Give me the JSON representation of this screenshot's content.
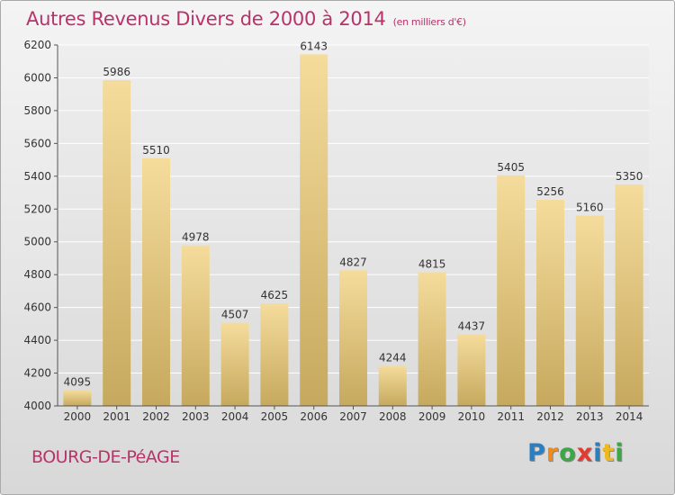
{
  "title": "Autres Revenus Divers de 2000 à 2014",
  "unit_note": "(en milliers d'€)",
  "location": "BOURG-DE-PéAGE",
  "brand": {
    "text": "Proxiti",
    "letter_colors": [
      "#2b7fc1",
      "#f08a1c",
      "#3aa845",
      "#e33b2f",
      "#2b7fc1",
      "#f0b81c",
      "#3aa845"
    ]
  },
  "colors": {
    "title": "#b8336a",
    "bar_light": "#f5dc9c",
    "bar_dark": "#c6a95e",
    "grid": "#ffffff"
  },
  "chart_data": {
    "type": "bar",
    "categories": [
      "2000",
      "2001",
      "2002",
      "2003",
      "2004",
      "2005",
      "2006",
      "2007",
      "2008",
      "2009",
      "2010",
      "2011",
      "2012",
      "2013",
      "2014"
    ],
    "values": [
      4095,
      5986,
      5510,
      4978,
      4507,
      4625,
      6143,
      4827,
      4244,
      4815,
      4437,
      5405,
      5256,
      5160,
      5350
    ],
    "ylim": [
      4000,
      6200
    ],
    "yticks": [
      4000,
      4200,
      4400,
      4600,
      4800,
      5000,
      5200,
      5400,
      5600,
      5800,
      6000,
      6200
    ],
    "grid": true,
    "title": "Autres Revenus Divers de 2000 à 2014",
    "xlabel": "",
    "ylabel": ""
  }
}
